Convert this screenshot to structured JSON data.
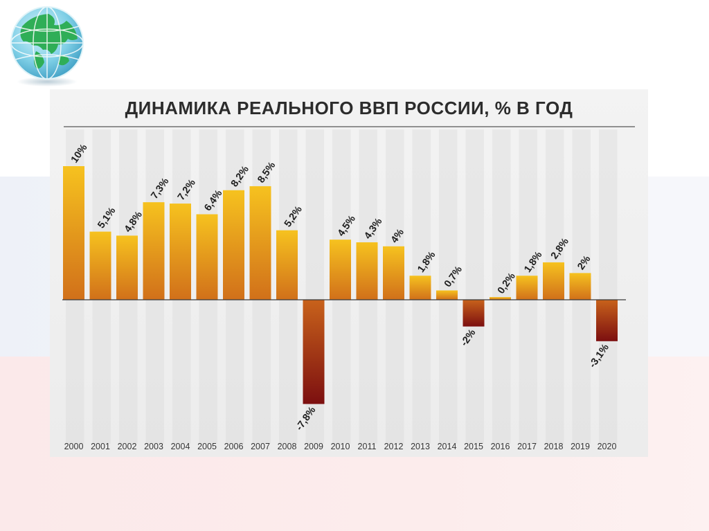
{
  "chart_data": {
    "type": "bar",
    "title": "ДИНАМИКА РЕАЛЬНОГО ВВП РОССИИ, % В ГОД",
    "xlabel": "",
    "ylabel": "",
    "categories": [
      "2000",
      "2001",
      "2002",
      "2003",
      "2004",
      "2005",
      "2006",
      "2007",
      "2008",
      "2009",
      "2010",
      "2011",
      "2012",
      "2013",
      "2014",
      "2015",
      "2016",
      "2017",
      "2018",
      "2019",
      "2020"
    ],
    "values": [
      10,
      5.1,
      4.8,
      7.3,
      7.2,
      6.4,
      8.2,
      8.5,
      5.2,
      -7.8,
      4.5,
      4.3,
      4,
      1.8,
      0.7,
      -2,
      0.2,
      1.8,
      2.8,
      2,
      -3.1
    ],
    "data_labels": [
      "10%",
      "5,1%",
      "4,8%",
      "7,3%",
      "7,2%",
      "6,4%",
      "8,2%",
      "8,5%",
      "5,2%",
      "-7,8%",
      "4,5%",
      "4,3%",
      "4%",
      "1,8%",
      "0,7%",
      "-2%",
      "0,2%",
      "1,8%",
      "2,8%",
      "2%",
      "-3,1%"
    ],
    "ylim": [
      -9,
      11.5
    ],
    "grid": false,
    "legend": "none",
    "colors": {
      "bar_top": "#f6c21f",
      "bar_bottom": "#d1701a",
      "neg_top": "#c8621b",
      "neg_bottom": "#7c0f10",
      "stripe": "#dcdcdc"
    }
  },
  "decor": {
    "globe_icon": "globe-icon"
  }
}
